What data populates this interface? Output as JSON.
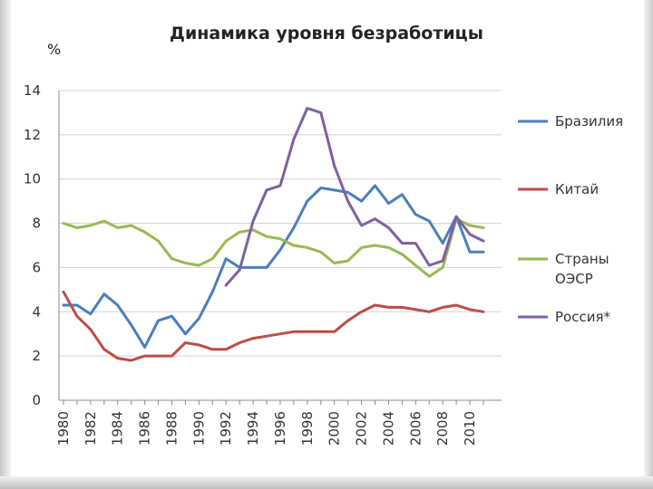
{
  "chart_data": {
    "type": "line",
    "title": "Динамика уровня безработицы",
    "ylabel": "%",
    "xlabel": "",
    "ylim": [
      0,
      14
    ],
    "xlim": [
      1980,
      2011
    ],
    "yticks": [
      0,
      2,
      4,
      6,
      8,
      10,
      12,
      14
    ],
    "xticks": [
      1980,
      1982,
      1984,
      1986,
      1988,
      1990,
      1992,
      1994,
      1996,
      1998,
      2000,
      2002,
      2004,
      2006,
      2008,
      2010
    ],
    "grid": "horizontal",
    "legend_position": "right",
    "series": [
      {
        "name": "Бразилия",
        "color": "#4a7ebb",
        "x": [
          1980,
          1981,
          1982,
          1983,
          1984,
          1985,
          1986,
          1987,
          1988,
          1989,
          1990,
          1991,
          1992,
          1993,
          1994,
          1995,
          1996,
          1997,
          1998,
          1999,
          2000,
          2001,
          2002,
          2003,
          2004,
          2005,
          2006,
          2007,
          2008,
          2009,
          2010,
          2011
        ],
        "values": [
          4.3,
          4.3,
          3.9,
          4.8,
          4.3,
          3.4,
          2.4,
          3.6,
          3.8,
          3.0,
          3.7,
          4.9,
          6.4,
          6.0,
          6.0,
          6.0,
          6.8,
          7.8,
          9.0,
          9.6,
          9.5,
          9.4,
          9.0,
          9.7,
          8.9,
          9.3,
          8.4,
          8.1,
          7.1,
          8.3,
          6.7,
          6.7
        ]
      },
      {
        "name": "Китай",
        "color": "#be4b48",
        "x": [
          1980,
          1981,
          1982,
          1983,
          1984,
          1985,
          1986,
          1987,
          1988,
          1989,
          1990,
          1991,
          1992,
          1993,
          1994,
          1995,
          1996,
          1997,
          1998,
          1999,
          2000,
          2001,
          2002,
          2003,
          2004,
          2005,
          2006,
          2007,
          2008,
          2009,
          2010,
          2011
        ],
        "values": [
          4.9,
          3.8,
          3.2,
          2.3,
          1.9,
          1.8,
          2.0,
          2.0,
          2.0,
          2.6,
          2.5,
          2.3,
          2.3,
          2.6,
          2.8,
          2.9,
          3.0,
          3.1,
          3.1,
          3.1,
          3.1,
          3.6,
          4.0,
          4.3,
          4.2,
          4.2,
          4.1,
          4.0,
          4.2,
          4.3,
          4.1,
          4.0
        ]
      },
      {
        "name": "Страны ОЭСР",
        "color": "#98b954",
        "x": [
          1980,
          1981,
          1982,
          1983,
          1984,
          1985,
          1986,
          1987,
          1988,
          1989,
          1990,
          1991,
          1992,
          1993,
          1994,
          1995,
          1996,
          1997,
          1998,
          1999,
          2000,
          2001,
          2002,
          2003,
          2004,
          2005,
          2006,
          2007,
          2008,
          2009,
          2010,
          2011
        ],
        "values": [
          8.0,
          7.8,
          7.9,
          8.1,
          7.8,
          7.9,
          7.6,
          7.2,
          6.4,
          6.2,
          6.1,
          6.4,
          7.2,
          7.6,
          7.7,
          7.4,
          7.3,
          7.0,
          6.9,
          6.7,
          6.2,
          6.3,
          6.9,
          7.0,
          6.9,
          6.6,
          6.1,
          5.6,
          6.0,
          8.2,
          7.9,
          7.8
        ]
      },
      {
        "name": "Россия*",
        "color": "#7d60a0",
        "x": [
          1992,
          1993,
          1994,
          1995,
          1996,
          1997,
          1998,
          1999,
          2000,
          2001,
          2002,
          2003,
          2004,
          2005,
          2006,
          2007,
          2008,
          2009,
          2010,
          2011
        ],
        "values": [
          5.2,
          5.9,
          8.1,
          9.5,
          9.7,
          11.8,
          13.2,
          13.0,
          10.6,
          9.0,
          7.9,
          8.2,
          7.8,
          7.1,
          7.1,
          6.1,
          6.3,
          8.3,
          7.5,
          7.2
        ]
      }
    ]
  }
}
